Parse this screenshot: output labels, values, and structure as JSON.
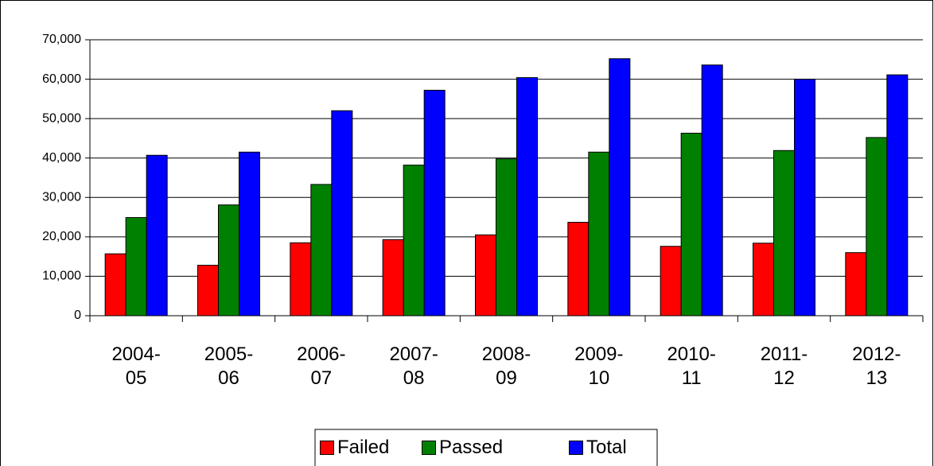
{
  "chart_data": {
    "type": "bar",
    "categories": [
      "2004-\n05",
      "2005-\n06",
      "2006-\n07",
      "2007-\n08",
      "2008-\n09",
      "2009-\n10",
      "2010-\n11",
      "2011-\n12",
      "2012-\n13"
    ],
    "series": [
      {
        "name": "Failed",
        "color": "#ff0000",
        "values": [
          15700,
          12800,
          18500,
          19300,
          20500,
          23700,
          17600,
          18400,
          16000
        ]
      },
      {
        "name": "Passed",
        "color": "#008000",
        "values": [
          24900,
          28100,
          33300,
          38200,
          39800,
          41500,
          46300,
          41900,
          45200
        ]
      },
      {
        "name": "Total",
        "color": "#0000ff",
        "values": [
          40700,
          41500,
          52000,
          57200,
          60400,
          65200,
          63600,
          60000,
          61100
        ]
      }
    ],
    "ylim": [
      0,
      70000
    ],
    "yticks": [
      0,
      {
        "value": 10000,
        "label": "10,000"
      },
      {
        "value": 20000,
        "label": "20,000"
      },
      {
        "value": 30000,
        "label": "30,000"
      },
      {
        "value": 40000,
        "label": "40,000"
      },
      {
        "value": 50000,
        "label": "50,000"
      },
      {
        "value": 60000,
        "label": "60,000"
      },
      {
        "value": 70000,
        "label": "70,000"
      }
    ],
    "grid": true,
    "legend": "bottom"
  }
}
